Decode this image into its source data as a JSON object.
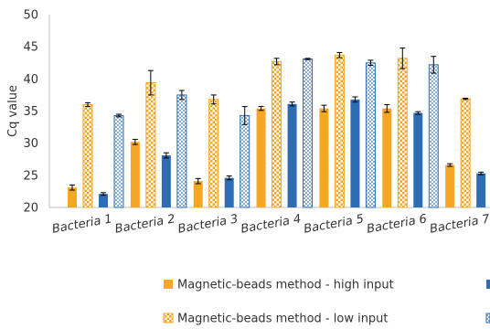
{
  "chart_data": {
    "type": "bar",
    "title": "",
    "xlabel": "",
    "ylabel": "Cq value",
    "ylim": [
      20,
      50
    ],
    "yticks": [
      20,
      25,
      30,
      35,
      40,
      45,
      50
    ],
    "grid": false,
    "legend_position": "bottom",
    "categories": [
      "Bacteria 1",
      "Bacteria 2",
      "Bacteria 3",
      "Bacteria 4",
      "Bacteria 5",
      "Bacteria 6",
      "Bacteria 7"
    ],
    "series": [
      {
        "name": "Magnetic-beads method - high input",
        "color": "#f5a623",
        "pattern": "solid",
        "values": [
          23.1,
          30.2,
          24.1,
          35.4,
          35.4,
          35.4,
          26.6
        ],
        "errors": [
          0.4,
          0.4,
          0.4,
          0.3,
          0.5,
          0.6,
          0.2
        ]
      },
      {
        "name": "Magnetic-beads method - low input",
        "color": "#f5a623",
        "pattern": "checker",
        "values": [
          36.0,
          39.4,
          36.8,
          42.7,
          43.7,
          43.2,
          36.9
        ],
        "errors": [
          0.3,
          1.9,
          0.7,
          0.5,
          0.4,
          1.6,
          0.1
        ]
      },
      {
        "name": "",
        "color": "#2e6db4",
        "pattern": "solid",
        "values": [
          22.1,
          28.1,
          24.6,
          36.1,
          36.8,
          34.7,
          25.3
        ],
        "errors": [
          0.2,
          0.4,
          0.3,
          0.3,
          0.4,
          0.2,
          0.2
        ]
      },
      {
        "name": "",
        "color": "#2e6db4",
        "pattern": "dots",
        "values": [
          34.3,
          37.5,
          34.3,
          43.1,
          42.5,
          42.2,
          35.4
        ],
        "errors": [
          0.2,
          0.7,
          1.4,
          0.1,
          0.4,
          1.3,
          0.1
        ]
      }
    ]
  }
}
